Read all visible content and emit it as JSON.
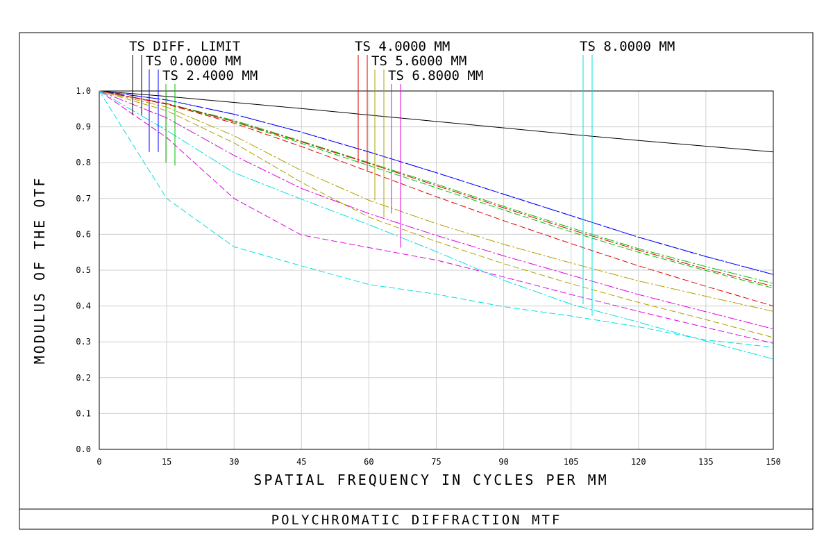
{
  "footer": {
    "title": "POLYCHROMATIC DIFFRACTION MTF"
  },
  "chart_data": {
    "type": "line",
    "xlabel": "SPATIAL FREQUENCY IN CYCLES PER MM",
    "ylabel": "MODULUS OF THE OTF",
    "xlim": [
      0,
      150
    ],
    "ylim": [
      0,
      1
    ],
    "grid": true,
    "x_ticks": [
      "0",
      "15",
      "30",
      "45",
      "60",
      "75",
      "90",
      "105",
      "120",
      "135",
      "150"
    ],
    "y_ticks": [
      "0.0",
      "0.1",
      "0.2",
      "0.3",
      "0.4",
      "0.5",
      "0.6",
      "0.7",
      "0.8",
      "0.9",
      "1.0"
    ],
    "legend": [
      {
        "label": "TS DIFF. LIMIT",
        "colors": [
          "#000000",
          "#000000"
        ],
        "x_at": 60
      },
      {
        "label": "TS 0.0000 MM",
        "colors": [
          "#0000ff",
          "#0000ff"
        ],
        "x_at": 60
      },
      {
        "label": "TS 2.4000 MM",
        "colors": [
          "#00c000",
          "#00c000"
        ],
        "x_at": 60
      },
      {
        "label": "TS 4.0000 MM",
        "colors": [
          "#e00000",
          "#e00000"
        ],
        "x_at": 60
      },
      {
        "label": "TS 5.6000 MM",
        "colors": [
          "#b0a000",
          "#b0a000"
        ],
        "x_at": 60
      },
      {
        "label": "TS 6.8000 MM",
        "colors": [
          "#e000e0",
          "#e000e0"
        ],
        "x_at": 60
      },
      {
        "label": "TS 8.0000 MM",
        "colors": [
          "#00e0e0",
          "#00e0e0"
        ],
        "x_at": 105
      }
    ],
    "series": [
      {
        "color": "#000000",
        "dash": "",
        "x": [
          0,
          15,
          30,
          45,
          60,
          75,
          90,
          105,
          120,
          135,
          150
        ],
        "y": [
          1.0,
          0.985,
          0.968,
          0.951,
          0.933,
          0.915,
          0.897,
          0.879,
          0.862,
          0.846,
          0.83
        ]
      },
      {
        "color": "#0000ff",
        "dash": "14 3 3 3",
        "x": [
          0,
          15,
          30,
          45,
          60,
          75,
          90,
          105,
          120,
          135,
          150
        ],
        "y": [
          1.0,
          0.975,
          0.935,
          0.885,
          0.83,
          0.772,
          0.712,
          0.652,
          0.592,
          0.538,
          0.488
        ]
      },
      {
        "color": "#0000ff",
        "dash": "9 4",
        "x": [
          0,
          15,
          30,
          45,
          60,
          75,
          90,
          105,
          120,
          135,
          150
        ],
        "y": [
          1.0,
          0.975,
          0.935,
          0.885,
          0.83,
          0.772,
          0.712,
          0.652,
          0.592,
          0.538,
          0.488
        ]
      },
      {
        "color": "#00c000",
        "dash": "14 3 3 3",
        "x": [
          0,
          15,
          30,
          45,
          60,
          75,
          90,
          105,
          120,
          135,
          150
        ],
        "y": [
          1.0,
          0.965,
          0.918,
          0.86,
          0.8,
          0.74,
          0.678,
          0.618,
          0.56,
          0.51,
          0.463
        ]
      },
      {
        "color": "#00c000",
        "dash": "9 4",
        "x": [
          0,
          15,
          30,
          45,
          60,
          75,
          90,
          105,
          120,
          135,
          150
        ],
        "y": [
          1.0,
          0.964,
          0.914,
          0.854,
          0.792,
          0.73,
          0.668,
          0.607,
          0.55,
          0.499,
          0.45
        ]
      },
      {
        "color": "#e00000",
        "dash": "14 3 3 3",
        "x": [
          0,
          15,
          30,
          45,
          60,
          75,
          90,
          105,
          120,
          135,
          150
        ],
        "y": [
          1.0,
          0.965,
          0.915,
          0.858,
          0.798,
          0.736,
          0.674,
          0.613,
          0.556,
          0.503,
          0.455
        ]
      },
      {
        "color": "#e00000",
        "dash": "9 4",
        "x": [
          0,
          15,
          30,
          45,
          60,
          75,
          90,
          105,
          120,
          135,
          150
        ],
        "y": [
          1.0,
          0.963,
          0.91,
          0.845,
          0.775,
          0.705,
          0.638,
          0.574,
          0.512,
          0.455,
          0.4
        ]
      },
      {
        "color": "#b0a000",
        "dash": "14 3 3 3",
        "x": [
          0,
          15,
          30,
          45,
          60,
          75,
          90,
          105,
          120,
          135,
          150
        ],
        "y": [
          1.0,
          0.955,
          0.875,
          0.778,
          0.695,
          0.63,
          0.572,
          0.52,
          0.47,
          0.427,
          0.385
        ]
      },
      {
        "color": "#b0a000",
        "dash": "9 4",
        "x": [
          0,
          15,
          30,
          45,
          60,
          75,
          90,
          105,
          120,
          135,
          150
        ],
        "y": [
          1.0,
          0.945,
          0.855,
          0.745,
          0.648,
          0.58,
          0.518,
          0.462,
          0.41,
          0.362,
          0.312
        ]
      },
      {
        "color": "#e000e0",
        "dash": "14 3 3 3",
        "x": [
          0,
          15,
          30,
          45,
          60,
          75,
          90,
          105,
          120,
          135,
          150
        ],
        "y": [
          1.0,
          0.925,
          0.82,
          0.728,
          0.658,
          0.597,
          0.54,
          0.486,
          0.432,
          0.384,
          0.336
        ]
      },
      {
        "color": "#e000e0",
        "dash": "9 4",
        "x": [
          0,
          15,
          30,
          45,
          60,
          75,
          90,
          105,
          120,
          135,
          150
        ],
        "y": [
          1.0,
          0.87,
          0.7,
          0.598,
          0.563,
          0.528,
          0.481,
          0.432,
          0.385,
          0.34,
          0.296
        ]
      },
      {
        "color": "#00e0e0",
        "dash": "14 3 3 3",
        "x": [
          0,
          15,
          30,
          45,
          60,
          75,
          90,
          105,
          120,
          135,
          150
        ],
        "y": [
          1.0,
          0.89,
          0.772,
          0.698,
          0.627,
          0.552,
          0.472,
          0.405,
          0.355,
          0.302,
          0.252
        ]
      },
      {
        "color": "#00e0e0",
        "dash": "9 4",
        "x": [
          0,
          15,
          30,
          45,
          60,
          75,
          90,
          105,
          120,
          135,
          150
        ],
        "y": [
          1.0,
          0.7,
          0.565,
          0.512,
          0.46,
          0.433,
          0.398,
          0.372,
          0.342,
          0.305,
          0.285
        ]
      }
    ]
  }
}
